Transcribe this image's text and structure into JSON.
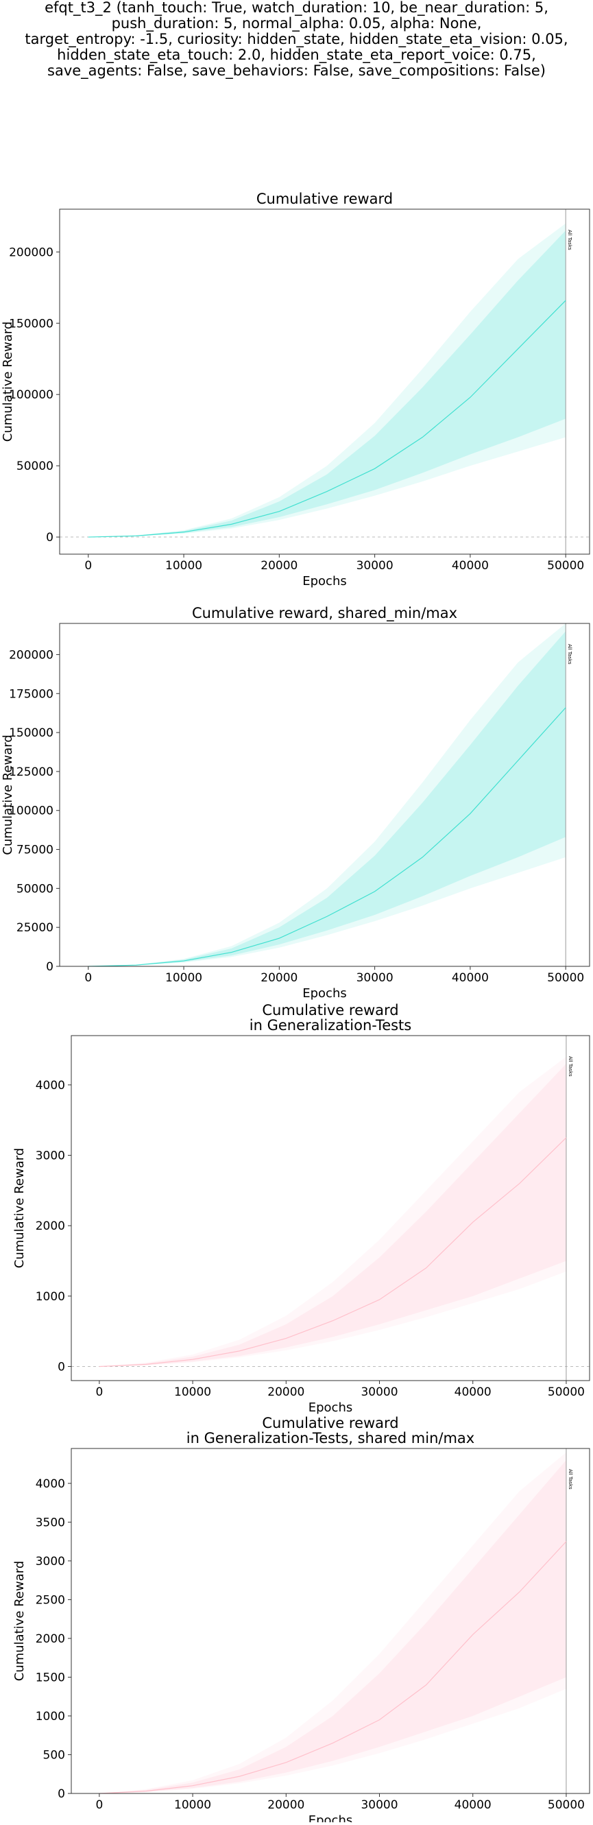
{
  "figure": {
    "suptitle": "efqt_t3_2 (tanh_touch: True, watch_duration: 10, be_near_duration: 5,\npush_duration: 5, normal_alpha: 0.05, alpha: None,\ntarget_entropy: -1.5, curiosity: hidden_state, hidden_state_eta_vision: 0.05,\nhidden_state_eta_touch: 2.0, hidden_state_eta_report_voice: 0.75,\nsave_agents: False, save_behaviors: False, save_compositions: False)"
  },
  "chart_data": [
    {
      "type": "line",
      "title": "Cumulative reward",
      "xlabel": "Epochs",
      "ylabel": "Cumulative Reward",
      "xlim": [
        -3000,
        52500
      ],
      "ylim": [
        -12000,
        230000
      ],
      "xticks": [
        0,
        10000,
        20000,
        30000,
        40000,
        50000
      ],
      "yticks": [
        0,
        50000,
        100000,
        150000,
        200000
      ],
      "grid": false,
      "zero_line": true,
      "color": "#40e0d0",
      "vline": {
        "x": 50000,
        "label": "All Tasks"
      },
      "series": [
        {
          "x": [
            0,
            5000,
            10000,
            15000,
            20000,
            25000,
            30000,
            35000,
            40000,
            45000,
            50000
          ],
          "mean": [
            0,
            800,
            3500,
            9000,
            18000,
            32000,
            48000,
            70000,
            98000,
            132000,
            166000
          ],
          "inner_low": [
            0,
            600,
            2800,
            7000,
            14000,
            23000,
            33000,
            45000,
            58000,
            70000,
            83000
          ],
          "inner_high": [
            0,
            1000,
            4300,
            11500,
            25000,
            44000,
            71000,
            105000,
            142000,
            180000,
            215000
          ],
          "outer_low": [
            0,
            500,
            2400,
            6000,
            12000,
            20000,
            29000,
            39000,
            50000,
            60000,
            70000
          ],
          "outer_high": [
            0,
            1100,
            4800,
            13000,
            28000,
            50000,
            80000,
            118000,
            158000,
            195000,
            220000
          ]
        }
      ]
    },
    {
      "type": "line",
      "title": "Cumulative reward, shared_min/max",
      "xlabel": "Epochs",
      "ylabel": "Cumulative Reward",
      "xlim": [
        -3000,
        52500
      ],
      "ylim": [
        0,
        220000
      ],
      "xticks": [
        0,
        10000,
        20000,
        30000,
        40000,
        50000
      ],
      "yticks": [
        0,
        25000,
        50000,
        75000,
        100000,
        125000,
        150000,
        175000,
        200000
      ],
      "grid": false,
      "zero_line": false,
      "color": "#40e0d0",
      "vline": {
        "x": 50000,
        "label": "All Tasks"
      },
      "series": [
        {
          "x": [
            0,
            5000,
            10000,
            15000,
            20000,
            25000,
            30000,
            35000,
            40000,
            45000,
            50000
          ],
          "mean": [
            0,
            800,
            3500,
            9000,
            18000,
            32000,
            48000,
            70000,
            98000,
            132000,
            166000
          ],
          "inner_low": [
            0,
            600,
            2800,
            7000,
            14000,
            23000,
            33000,
            45000,
            58000,
            70000,
            83000
          ],
          "inner_high": [
            0,
            1000,
            4300,
            11500,
            25000,
            44000,
            71000,
            105000,
            142000,
            180000,
            215000
          ],
          "outer_low": [
            0,
            500,
            2400,
            6000,
            12000,
            20000,
            29000,
            39000,
            50000,
            60000,
            70000
          ],
          "outer_high": [
            0,
            1100,
            4800,
            13000,
            28000,
            50000,
            80000,
            118000,
            158000,
            195000,
            220000
          ]
        }
      ]
    },
    {
      "type": "line",
      "title": "Cumulative reward\nin Generalization-Tests",
      "xlabel": "Epochs",
      "ylabel": "Cumulative Reward",
      "xlim": [
        -3000,
        52500
      ],
      "ylim": [
        -200,
        4700
      ],
      "xticks": [
        0,
        10000,
        20000,
        30000,
        40000,
        50000
      ],
      "yticks": [
        0,
        1000,
        2000,
        3000,
        4000
      ],
      "grid": false,
      "zero_line": true,
      "color": "#ffc0cb",
      "vline": {
        "x": 50000,
        "label": "All Tasks"
      },
      "series": [
        {
          "x": [
            0,
            5000,
            10000,
            15000,
            20000,
            25000,
            30000,
            35000,
            40000,
            45000,
            50000
          ],
          "mean": [
            0,
            30,
            100,
            220,
            400,
            650,
            950,
            1400,
            2050,
            2600,
            3250
          ],
          "inner_low": [
            0,
            20,
            70,
            150,
            270,
            420,
            600,
            800,
            1000,
            1250,
            1500
          ],
          "inner_high": [
            0,
            45,
            140,
            310,
            600,
            1000,
            1550,
            2200,
            2900,
            3600,
            4300
          ],
          "outer_low": [
            0,
            15,
            60,
            130,
            230,
            360,
            520,
            700,
            900,
            1100,
            1350
          ],
          "outer_high": [
            0,
            55,
            170,
            380,
            720,
            1200,
            1800,
            2500,
            3200,
            3900,
            4400
          ]
        }
      ]
    },
    {
      "type": "line",
      "title": "Cumulative reward\nin Generalization-Tests, shared min/max",
      "xlabel": "Epochs",
      "ylabel": "Cumulative Reward",
      "xlim": [
        -3000,
        52500
      ],
      "ylim": [
        0,
        4450
      ],
      "xticks": [
        0,
        10000,
        20000,
        30000,
        40000,
        50000
      ],
      "yticks": [
        0,
        500,
        1000,
        1500,
        2000,
        2500,
        3000,
        3500,
        4000
      ],
      "grid": false,
      "zero_line": false,
      "color": "#ffc0cb",
      "vline": {
        "x": 50000,
        "label": "All Tasks"
      },
      "series": [
        {
          "x": [
            0,
            5000,
            10000,
            15000,
            20000,
            25000,
            30000,
            35000,
            40000,
            45000,
            50000
          ],
          "mean": [
            0,
            30,
            100,
            220,
            400,
            650,
            950,
            1400,
            2050,
            2600,
            3250
          ],
          "inner_low": [
            0,
            20,
            70,
            150,
            270,
            420,
            600,
            800,
            1000,
            1250,
            1500
          ],
          "inner_high": [
            0,
            45,
            140,
            310,
            600,
            1000,
            1550,
            2200,
            2900,
            3600,
            4300
          ],
          "outer_low": [
            0,
            15,
            60,
            130,
            230,
            360,
            520,
            700,
            900,
            1100,
            1350
          ],
          "outer_high": [
            0,
            55,
            170,
            380,
            720,
            1200,
            1800,
            2500,
            3200,
            3900,
            4400
          ]
        }
      ]
    }
  ]
}
